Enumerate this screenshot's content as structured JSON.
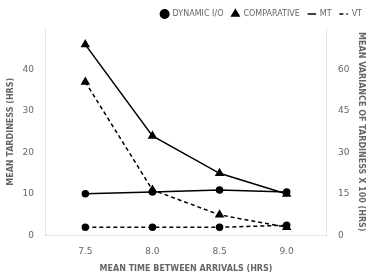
{
  "chart_data": {
    "type": "line",
    "x_label": "MEAN TIME BETWEEN ARRIVALS (HRS)",
    "y_label": "MEAN TARDINESS (HRS)",
    "y2_label": "MEAN VARIANCE OF TARDINESS X 100 (HRS)",
    "x": [
      7.5,
      8.0,
      8.5,
      9.0
    ],
    "series": [
      {
        "values": [
          10.1,
          10.5,
          11.0,
          10.5
        ],
        "marker": "circle",
        "line_style": "solid",
        "axis": "y"
      },
      {
        "values": [
          2.0,
          2.0,
          2.0,
          2.5
        ],
        "marker": "circle",
        "line_style": "dashed",
        "axis": "y"
      },
      {
        "values": [
          46.0,
          24.0,
          15.0,
          10.0
        ],
        "marker": "triangle",
        "line_style": "solid",
        "axis": "y"
      },
      {
        "values": [
          37.0,
          11.0,
          5.0,
          2.0
        ],
        "marker": "triangle",
        "line_style": "dashed",
        "axis": "y"
      }
    ],
    "xlim": [
      7.2,
      9.3
    ],
    "xticks": [
      7.5,
      {
        "value": 8.0,
        "label": "8.0"
      },
      8.5,
      {
        "value": 9.0,
        "label": "9.0"
      }
    ],
    "ylim": [
      0,
      50
    ],
    "yticks": [
      0,
      10,
      20,
      30,
      40
    ],
    "y2lim": [
      0,
      75
    ],
    "y2ticks": [
      0,
      15,
      30,
      45,
      60
    ],
    "color": "#000000",
    "grid": false,
    "legend": "upper right",
    "legend_entries": [
      {
        "label": "DYNAMIC I/O",
        "marker": "circle"
      },
      {
        "label": "COMPARATIVE",
        "marker": "triangle"
      },
      {
        "label": "MT",
        "line_style": "solid"
      },
      {
        "label": "VT",
        "line_style": "dashed"
      }
    ]
  }
}
